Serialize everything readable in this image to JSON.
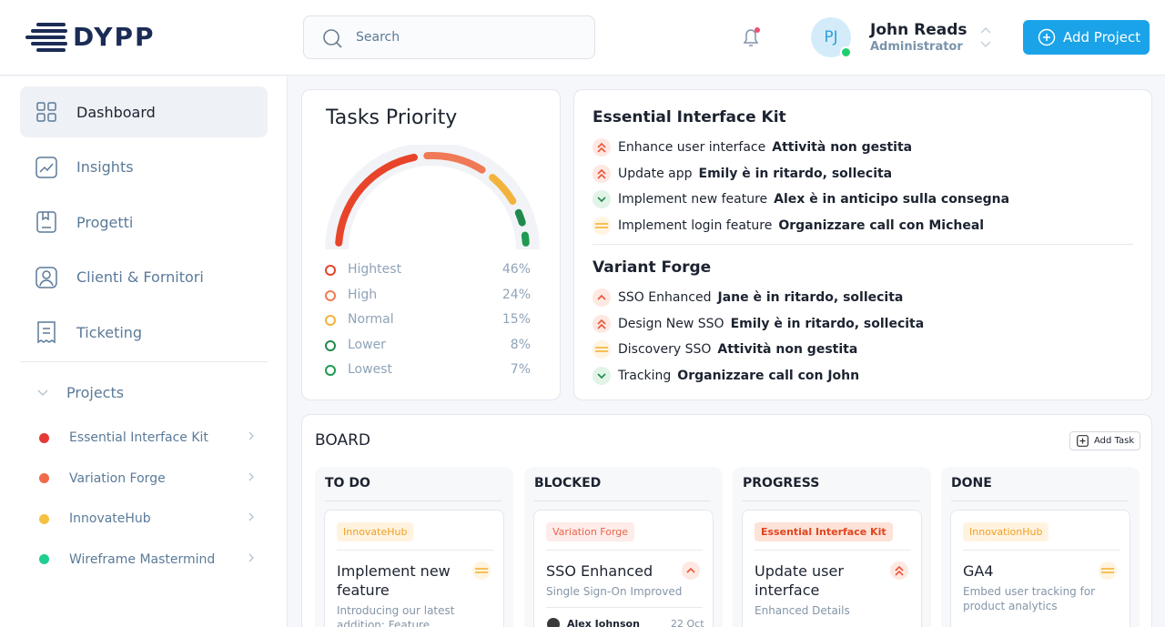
{
  "header": {
    "logo": "DYPP",
    "search_placeholder": "Search",
    "user": {
      "initials": "PJ",
      "name": "John Reads",
      "role": "Administrator"
    },
    "add_project": "Add Project"
  },
  "sidebar": {
    "nav": [
      "Dashboard",
      "Insights",
      "Progetti",
      "Clienti & Fornitori",
      "Ticketing"
    ],
    "projects_label": "Projects",
    "projects": [
      "Essential Interface Kit",
      "Variation Forge",
      "InnovateHub",
      "Wireframe Mastermind"
    ]
  },
  "tasks_priority": {
    "title": "Tasks Priority",
    "names": [
      "Hightest",
      "High",
      "Normal",
      "Lower",
      "Lowest"
    ],
    "values": [
      46,
      24,
      15,
      8,
      7
    ],
    "value_labels": [
      "46%",
      "24%",
      "15%",
      "8%",
      "7%"
    ],
    "colors": [
      "#e8442a",
      "#ef7a55",
      "#f2b33d",
      "#1f8a4c",
      "#1f9a50"
    ]
  },
  "updates": [
    {
      "project": "Essential Interface Kit",
      "items": [
        {
          "task": "Enhance user interface",
          "status": "Attività non gestita"
        },
        {
          "task": "Update app",
          "status": "Emily è in ritardo, sollecita"
        },
        {
          "task": "Implement new feature",
          "status": "Alex è in anticipo sulla consegna"
        },
        {
          "task": "Implement login feature",
          "status": "Organizzare call con Micheal"
        }
      ]
    },
    {
      "project": "Variant Forge",
      "items": [
        {
          "task": "SSO Enhanced",
          "status": "Jane è in ritardo, sollecita"
        },
        {
          "task": "Design New SSO",
          "status": "Emily è in ritardo, sollecita"
        },
        {
          "task": "Discovery SSO",
          "status": "Attività non gestita"
        },
        {
          "task": "Tracking",
          "status": "Organizzare call con John"
        }
      ]
    }
  ],
  "board": {
    "title": "BOARD",
    "add_task": "Add Task",
    "columns": [
      {
        "name": "TO DO",
        "cards": [
          {
            "tag": "InnovateHub",
            "title": "Implement new feature",
            "description": "Introducing our latest addition: Feature Overview"
          }
        ]
      },
      {
        "name": "BLOCKED",
        "cards": [
          {
            "tag": "Variation Forge",
            "title": "SSO Enhanced",
            "description": "Single Sign-On Improved",
            "assignee": "Alex Johnson",
            "date": "22 Oct"
          }
        ]
      },
      {
        "name": "PROGRESS",
        "cards": [
          {
            "tag": "Essential Interface Kit",
            "title": "Update user interface",
            "description": "Enhanced Details"
          }
        ]
      },
      {
        "name": "DONE",
        "cards": [
          {
            "tag": "InnovationHub",
            "title": "GA4",
            "description": "Embed user tracking for product analytics"
          }
        ]
      }
    ]
  }
}
